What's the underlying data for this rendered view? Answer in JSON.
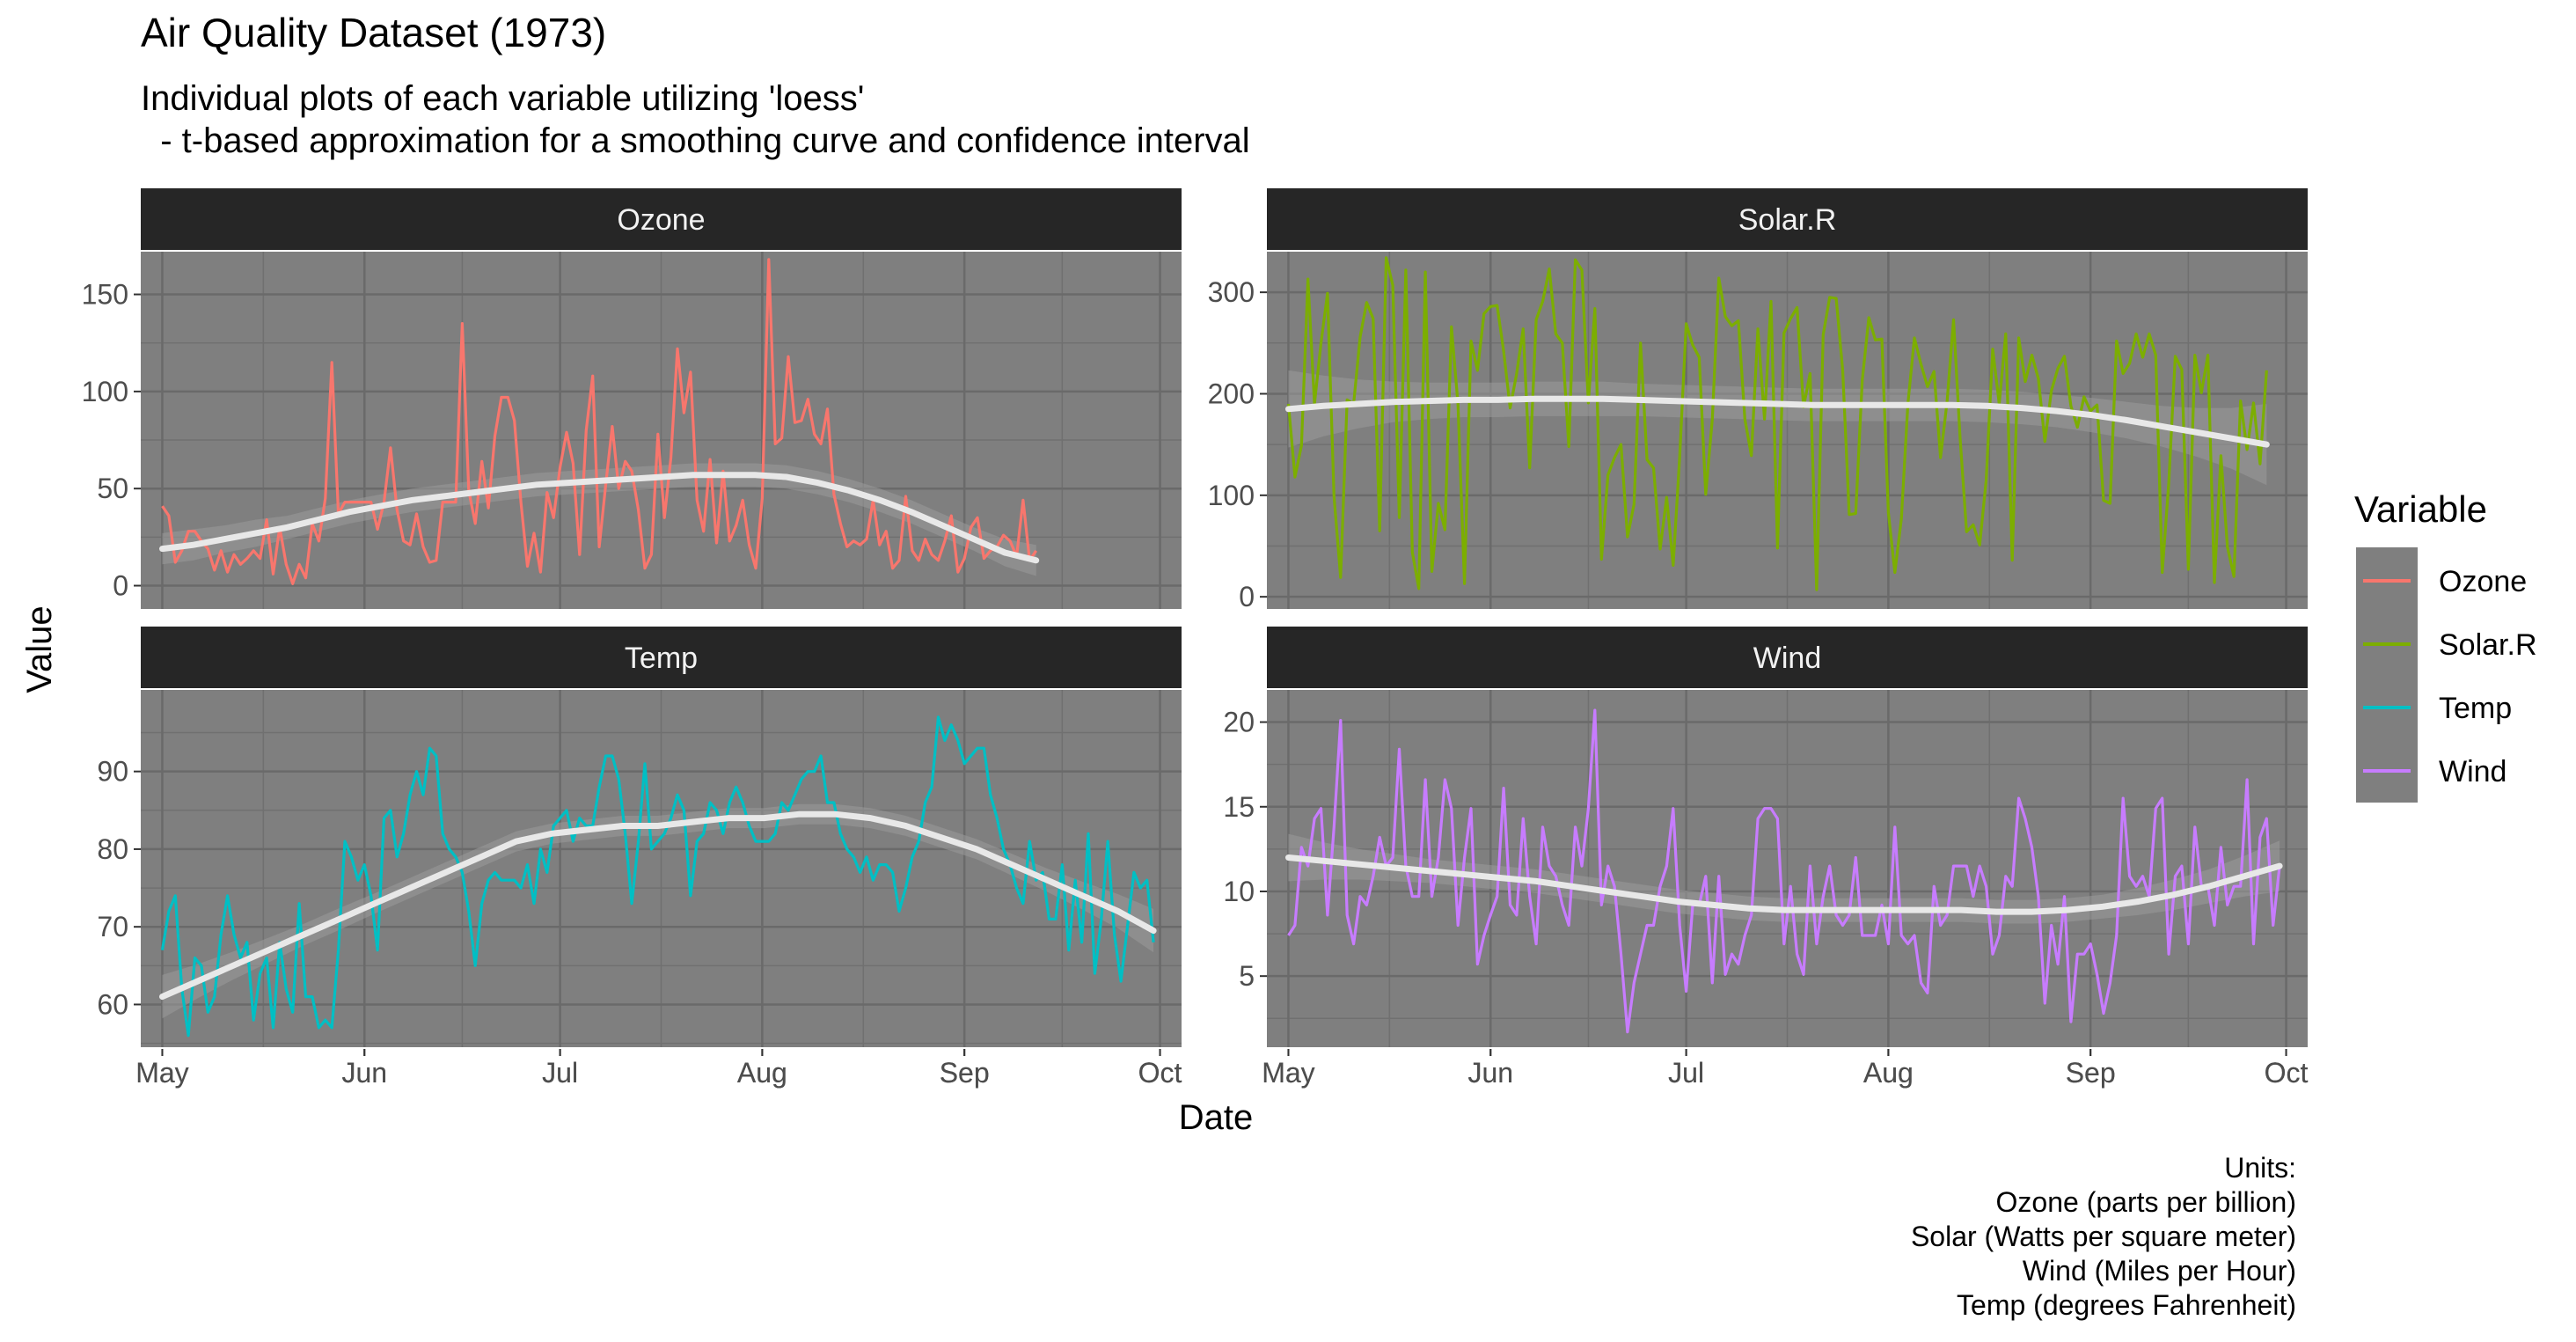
{
  "title": "Air Quality Dataset (1973)",
  "subtitle": "Individual plots of each variable utilizing 'loess'\n  - t-based approximation for a smoothing curve and confidence interval",
  "caption": "Units:\nOzone (parts per billion)\nSolar (Watts per square meter)\nWind (Miles per Hour)\nTemp (degrees Fahrenheit)",
  "chart_data": {
    "type": "line",
    "xlabel": "Date",
    "ylabel": "Value",
    "x_ticks": [
      "May",
      "Jun",
      "Jul",
      "Aug",
      "Sep",
      "Oct"
    ],
    "x_start": "1973-05-01",
    "legend": {
      "title": "Variable",
      "position": "right"
    },
    "panel_background": "#7f7f7f",
    "strip_background": "#262626",
    "smooth_color": "#e8e8e8",
    "series": [
      {
        "name": "Ozone",
        "color": "#f8766d",
        "ylim": [
          -12,
          172
        ],
        "y_ticks": [
          0,
          50,
          100,
          150
        ],
        "values": [
          41,
          36,
          12,
          18,
          28,
          28,
          23,
          19,
          8,
          18,
          7,
          16,
          11,
          14,
          18,
          14,
          34,
          6,
          30,
          11,
          1,
          11,
          4,
          32,
          23,
          45,
          115,
          37,
          43,
          43,
          43,
          43,
          43,
          29,
          43,
          71,
          39,
          23,
          21,
          37,
          20,
          12,
          13,
          43,
          43,
          43,
          135,
          49,
          32,
          64,
          40,
          77,
          97,
          97,
          85,
          43,
          10,
          27,
          7,
          48,
          35,
          61,
          79,
          63,
          16,
          80,
          108,
          20,
          52,
          82,
          50,
          64,
          59,
          39,
          9,
          16,
          78,
          35,
          66,
          122,
          89,
          110,
          44,
          28,
          65,
          22,
          59,
          23,
          31,
          44,
          21,
          9,
          45,
          168,
          73,
          76,
          118,
          84,
          85,
          96,
          78,
          73,
          91,
          47,
          32,
          20,
          23,
          21,
          24,
          44,
          21,
          28,
          9,
          13,
          46,
          18,
          13,
          24,
          16,
          13,
          23,
          36,
          7,
          14,
          30,
          35,
          14,
          18,
          20,
          26,
          23,
          15,
          44,
          13,
          18
        ],
        "smooth": [
          19,
          21,
          24,
          27,
          30,
          34,
          38,
          41,
          44,
          46,
          48,
          50,
          52,
          53,
          54,
          55,
          56,
          57,
          57,
          57,
          56,
          53,
          49,
          44,
          38,
          31,
          24,
          17,
          13
        ],
        "ci": [
          8,
          8,
          7,
          7,
          6,
          6,
          6,
          6,
          6,
          6,
          6,
          6,
          6,
          6,
          6,
          6,
          6,
          6,
          6,
          6,
          6,
          6,
          6,
          6,
          6,
          6,
          6,
          7,
          8
        ]
      },
      {
        "name": "Solar.R",
        "color": "#7cae00",
        "ylim": [
          -12,
          340
        ],
        "y_ticks": [
          0,
          100,
          200,
          300
        ],
        "values": [
          190,
          118,
          149,
          313,
          190,
          250,
          299,
          99,
          19,
          194,
          190,
          256,
          290,
          274,
          65,
          334,
          307,
          78,
          322,
          44,
          8,
          320,
          25,
          92,
          66,
          266,
          190,
          13,
          252,
          223,
          279,
          286,
          287,
          242,
          186,
          220,
          264,
          127,
          273,
          291,
          323,
          259,
          250,
          148,
          332,
          322,
          191,
          284,
          37,
          120,
          137,
          150,
          59,
          91,
          250,
          135,
          127,
          47,
          98,
          31,
          138,
          269,
          248,
          236,
          101,
          175,
          314,
          276,
          267,
          272,
          175,
          139,
          264,
          175,
          291,
          48,
          260,
          274,
          285,
          187,
          220,
          7,
          258,
          295,
          294,
          223,
          81,
          82,
          213,
          275,
          253,
          254,
          83,
          24,
          77,
          190,
          255,
          229,
          207,
          222,
          137,
          192,
          273,
          157,
          64,
          71,
          51,
          115,
          244,
          190,
          259,
          36,
          255,
          212,
          238,
          215,
          153,
          203,
          225,
          237,
          188,
          167,
          197,
          183,
          189,
          95,
          92,
          252,
          220,
          230,
          259,
          236,
          259,
          238,
          24,
          112,
          237,
          224,
          27,
          238,
          201,
          238,
          14,
          139,
          49,
          20,
          193,
          145,
          191,
          131,
          223
        ],
        "smooth": [
          185,
          188,
          190,
          192,
          193,
          194,
          194,
          195,
          195,
          195,
          194,
          193,
          192,
          191,
          190,
          189,
          189,
          189,
          189,
          189,
          188,
          186,
          183,
          179,
          174,
          168,
          162,
          156,
          150
        ],
        "ci": [
          38,
          30,
          24,
          20,
          18,
          17,
          17,
          17,
          17,
          17,
          16,
          16,
          16,
          16,
          16,
          16,
          16,
          16,
          16,
          16,
          16,
          16,
          16,
          17,
          18,
          20,
          24,
          30,
          40
        ]
      },
      {
        "name": "Temp",
        "color": "#00bfc4",
        "ylim": [
          54.5,
          100.5
        ],
        "y_ticks": [
          60,
          70,
          80,
          90
        ],
        "values": [
          67,
          72,
          74,
          62,
          56,
          66,
          65,
          59,
          61,
          69,
          74,
          69,
          66,
          68,
          58,
          64,
          66,
          57,
          68,
          62,
          59,
          73,
          61,
          61,
          57,
          58,
          57,
          67,
          81,
          79,
          76,
          78,
          74,
          67,
          84,
          85,
          79,
          82,
          87,
          90,
          87,
          93,
          92,
          82,
          80,
          79,
          77,
          72,
          65,
          73,
          76,
          77,
          76,
          76,
          76,
          75,
          78,
          73,
          80,
          77,
          83,
          84,
          85,
          81,
          84,
          83,
          83,
          88,
          92,
          92,
          89,
          82,
          73,
          81,
          91,
          80,
          81,
          82,
          84,
          87,
          85,
          74,
          81,
          82,
          86,
          85,
          82,
          86,
          88,
          86,
          83,
          81,
          81,
          81,
          82,
          86,
          85,
          87,
          89,
          90,
          90,
          92,
          86,
          86,
          82,
          80,
          79,
          77,
          79,
          76,
          78,
          78,
          77,
          72,
          75,
          79,
          81,
          86,
          88,
          97,
          94,
          96,
          94,
          91,
          92,
          93,
          93,
          87,
          84,
          80,
          78,
          75,
          73,
          81,
          76,
          77,
          71,
          71,
          78,
          67,
          76,
          68,
          82,
          64,
          71,
          81,
          69,
          63,
          70,
          77,
          75,
          76,
          68
        ],
        "smooth": [
          61,
          63,
          65,
          67,
          69,
          71,
          73,
          75,
          77,
          79,
          81,
          82,
          82.5,
          83,
          83,
          83.5,
          84,
          84,
          84.5,
          84.5,
          84,
          83,
          81.5,
          80,
          78,
          76,
          74,
          72,
          69.5
        ],
        "ci": [
          2.8,
          2.2,
          1.8,
          1.6,
          1.4,
          1.4,
          1.3,
          1.3,
          1.3,
          1.3,
          1.3,
          1.3,
          1.3,
          1.3,
          1.3,
          1.3,
          1.3,
          1.3,
          1.3,
          1.3,
          1.3,
          1.3,
          1.3,
          1.3,
          1.4,
          1.5,
          1.8,
          2.2,
          2.8
        ]
      },
      {
        "name": "Wind",
        "color": "#c77cff",
        "ylim": [
          0.8,
          21.9
        ],
        "y_ticks": [
          5,
          10,
          15,
          20
        ],
        "values": [
          7.4,
          8,
          12.6,
          11.5,
          14.3,
          14.9,
          8.6,
          13.8,
          20.1,
          8.6,
          6.9,
          9.7,
          9.2,
          10.9,
          13.2,
          11.5,
          12,
          18.4,
          11.5,
          9.7,
          9.7,
          16.6,
          9.7,
          12,
          16.6,
          14.9,
          8,
          12,
          14.9,
          5.7,
          7.4,
          8.6,
          9.7,
          16.1,
          9.2,
          8.6,
          14.3,
          9.7,
          6.9,
          13.8,
          11.5,
          10.9,
          9.2,
          8,
          13.8,
          11.5,
          14.9,
          20.7,
          9.2,
          11.5,
          10.3,
          6.3,
          1.7,
          4.6,
          6.3,
          8,
          8,
          10.3,
          11.5,
          14.9,
          8,
          4.1,
          9.2,
          9.2,
          10.9,
          4.6,
          10.9,
          5.1,
          6.3,
          5.7,
          7.4,
          8.6,
          14.3,
          14.9,
          14.9,
          14.3,
          6.9,
          10.3,
          6.3,
          5.1,
          11.5,
          6.9,
          9.7,
          11.5,
          8.6,
          8,
          8.6,
          12,
          7.4,
          7.4,
          7.4,
          9.2,
          6.9,
          13.8,
          7.4,
          6.9,
          7.4,
          4.6,
          4,
          10.3,
          8,
          8.6,
          11.5,
          11.5,
          11.5,
          9.7,
          11.5,
          10.3,
          6.3,
          7.4,
          10.9,
          10.3,
          15.5,
          14.3,
          12.6,
          9.7,
          3.4,
          8,
          5.7,
          9.7,
          2.3,
          6.3,
          6.3,
          6.9,
          5.1,
          2.8,
          4.6,
          7.4,
          15.5,
          10.9,
          10.3,
          10.9,
          9.7,
          14.9,
          15.5,
          6.3,
          10.9,
          11.5,
          6.9,
          13.8,
          10.3,
          10.3,
          8,
          12.6,
          9.2,
          10.3,
          10.3,
          16.6,
          6.9,
          13.2,
          14.3,
          8,
          11.5
        ],
        "smooth": [
          12,
          11.8,
          11.6,
          11.4,
          11.2,
          11,
          10.8,
          10.6,
          10.3,
          10,
          9.7,
          9.4,
          9.2,
          9,
          8.9,
          8.9,
          8.9,
          8.9,
          8.9,
          8.9,
          8.8,
          8.8,
          8.9,
          9.1,
          9.4,
          9.8,
          10.3,
          10.9,
          11.5
        ],
        "ci": [
          1.4,
          1.1,
          0.9,
          0.8,
          0.7,
          0.7,
          0.7,
          0.7,
          0.7,
          0.7,
          0.7,
          0.7,
          0.7,
          0.7,
          0.7,
          0.7,
          0.7,
          0.7,
          0.7,
          0.7,
          0.7,
          0.7,
          0.7,
          0.7,
          0.8,
          0.9,
          1,
          1.2,
          1.5
        ]
      }
    ]
  }
}
